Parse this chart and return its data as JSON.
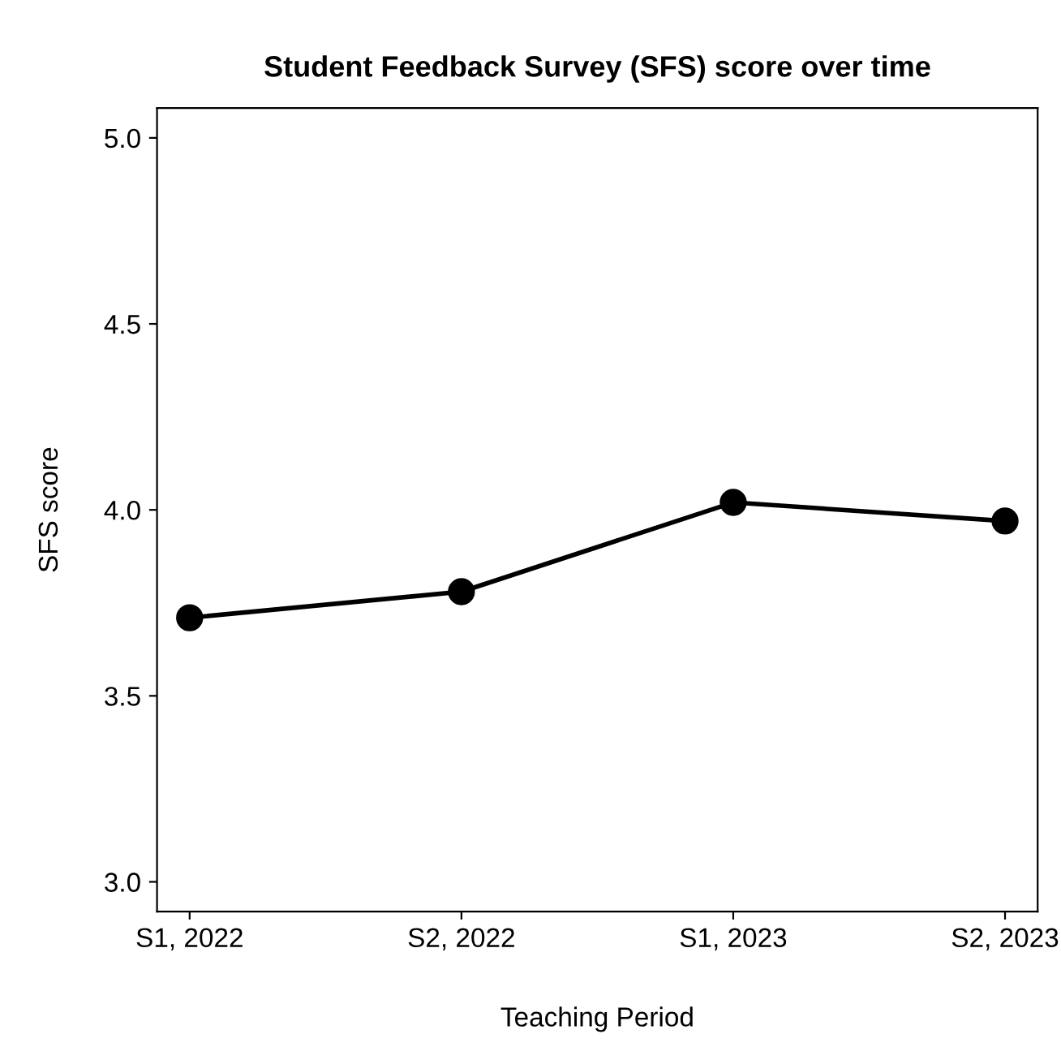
{
  "chart_data": {
    "type": "line",
    "title": "Student Feedback Survey (SFS) score over time",
    "xlabel": "Teaching Period",
    "ylabel": "SFS score",
    "categories": [
      "S1, 2022",
      "S2, 2022",
      "S1, 2023",
      "S2, 2023"
    ],
    "series": [
      {
        "color": "#000000",
        "values": [
          3.71,
          3.78,
          4.02,
          3.97
        ]
      }
    ],
    "ylim": [
      2.92,
      5.08
    ],
    "yticks": [
      {
        "value": 3,
        "label": "3.0"
      },
      3.5,
      {
        "value": 4,
        "label": "4.0"
      },
      4.5,
      {
        "value": 5,
        "label": "5.0"
      }
    ],
    "marker": "circle",
    "line_style": "solid",
    "grid": false,
    "legend": false
  }
}
